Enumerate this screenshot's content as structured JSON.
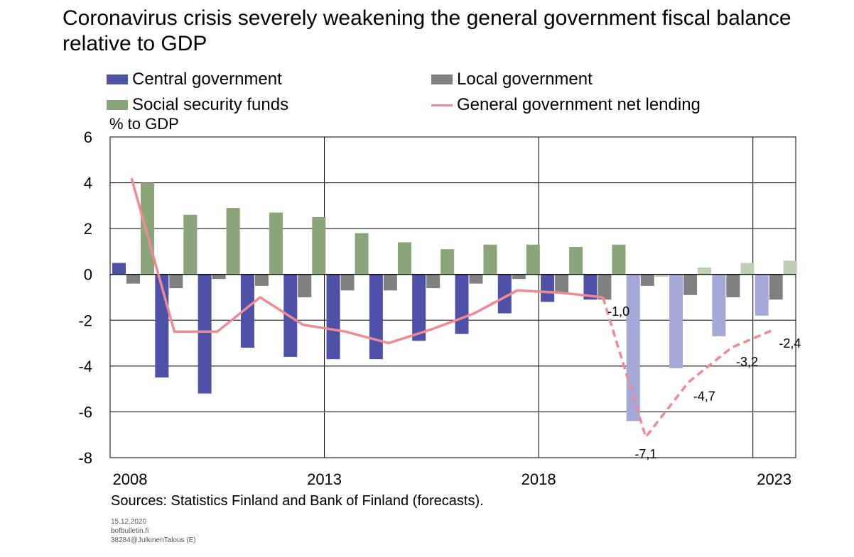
{
  "chart_data": {
    "type": "bar",
    "title": "Coronavirus crisis severely weakening the general government fiscal balance relative to GDP",
    "ylabel": "% to GDP",
    "ylim": [
      -8,
      6
    ],
    "yticks": [
      6,
      4,
      2,
      0,
      -2,
      -4,
      -6,
      -8
    ],
    "x_tick_labels": [
      "2008",
      "2013",
      "2018",
      "2023"
    ],
    "grid": true,
    "legend_position": "top",
    "categories": [
      "2008",
      "2009",
      "2010",
      "2011",
      "2012",
      "2013",
      "2014",
      "2015",
      "2016",
      "2017",
      "2018",
      "2019",
      "2020",
      "2021",
      "2022",
      "2023"
    ],
    "forecast_from": "2020",
    "series": [
      {
        "name": "Central government",
        "type": "bar",
        "color": "#4f51a8",
        "forecast_color": "#a5a8d8",
        "values": [
          0.5,
          -4.5,
          -5.2,
          -3.2,
          -3.6,
          -3.7,
          -3.7,
          -2.9,
          -2.6,
          -1.7,
          -1.2,
          -1.1,
          -6.4,
          -4.1,
          -2.7,
          -1.8
        ]
      },
      {
        "name": "Local government",
        "type": "bar",
        "color": "#808080",
        "forecast_color": "#808080",
        "values": [
          -0.4,
          -0.6,
          -0.2,
          -0.5,
          -1.0,
          -0.7,
          -0.7,
          -0.6,
          -0.4,
          -0.2,
          -0.8,
          -1.1,
          -0.5,
          -0.9,
          -1.0,
          -1.1
        ]
      },
      {
        "name": "Social security funds",
        "type": "bar",
        "color": "#8aa57a",
        "forecast_color": "#bfd0b4",
        "values": [
          4.0,
          2.6,
          2.9,
          2.7,
          2.5,
          1.8,
          1.4,
          1.1,
          1.3,
          1.3,
          1.2,
          1.3,
          -0.1,
          0.3,
          0.5,
          0.6
        ]
      },
      {
        "name": "General government net lending",
        "type": "line",
        "color": "#ee8a94",
        "values": [
          4.2,
          -2.5,
          -2.5,
          -1.0,
          -2.2,
          -2.5,
          -3.0,
          -2.4,
          -1.7,
          -0.7,
          -0.8,
          -1.0,
          -7.1,
          -4.7,
          -3.2,
          -2.4
        ]
      }
    ],
    "data_labels": [
      {
        "category": "2019",
        "text": "-1,0"
      },
      {
        "category": "2020",
        "text": "-7,1"
      },
      {
        "category": "2021",
        "text": "-4,7"
      },
      {
        "category": "2022",
        "text": "-3,2"
      },
      {
        "category": "2023",
        "text": "-2,4"
      }
    ]
  },
  "sources": "Sources: Statistics Finland and Bank of Finland (forecasts).",
  "footer": {
    "date": "15.12.2020",
    "site": "bofbulletin.fi",
    "code": "38284@JulkinenTalous  (E)"
  }
}
